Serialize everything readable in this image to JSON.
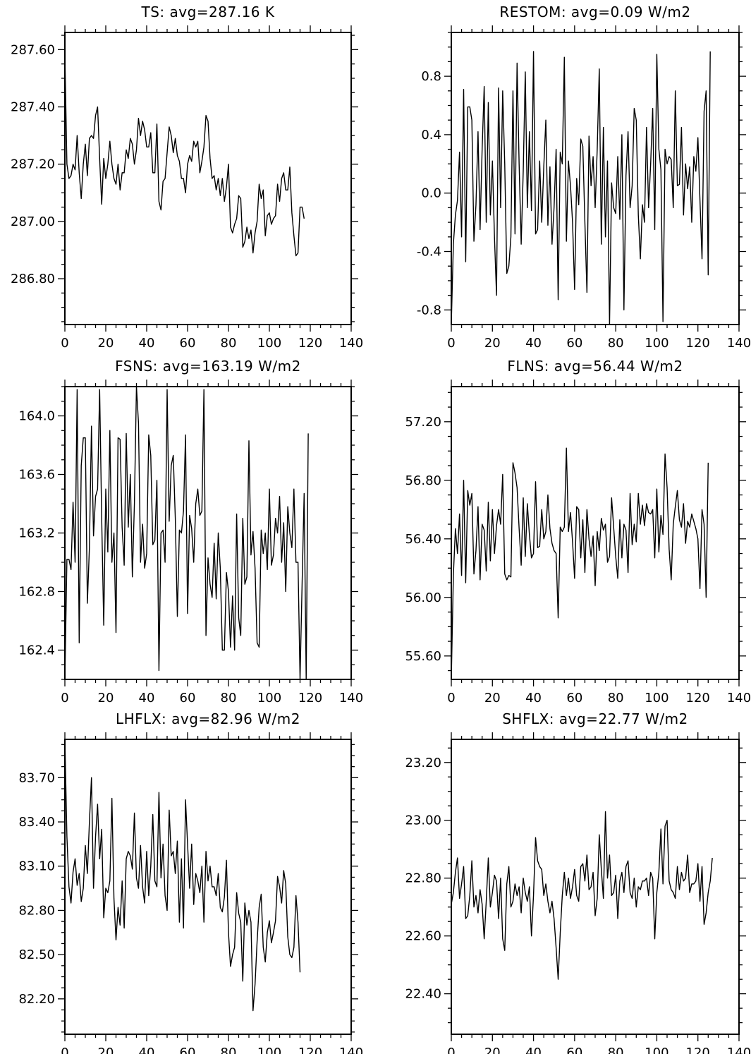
{
  "colors": {
    "line": "#000000",
    "background": "#ffffff",
    "frame": "#000000"
  },
  "chart_data": [
    {
      "type": "line",
      "title": "TS: avg=287.16 K",
      "xlabel": "",
      "ylabel": "",
      "xlim": [
        0,
        140
      ],
      "ylim": [
        286.64,
        287.66
      ],
      "xticks": [
        0,
        20,
        40,
        60,
        80,
        100,
        120,
        140
      ],
      "xtick_labels": [
        "0",
        "20",
        "40",
        "60",
        "80",
        "100",
        "120",
        "140"
      ],
      "yticks": [
        286.8,
        287.0,
        287.2,
        287.4,
        287.6
      ],
      "ytick_labels": [
        "286.80",
        "287.00",
        "287.20",
        "287.40",
        "287.60"
      ],
      "grid": false,
      "series": [
        {
          "values": [
            287.58,
            287.2,
            287.15,
            287.16,
            287.2,
            287.18,
            287.3,
            287.17,
            287.08,
            287.2,
            287.27,
            287.16,
            287.29,
            287.3,
            287.29,
            287.37,
            287.4,
            287.22,
            287.06,
            287.22,
            287.15,
            287.2,
            287.28,
            287.2,
            287.15,
            287.13,
            287.2,
            287.11,
            287.17,
            287.17,
            287.25,
            287.22,
            287.29,
            287.27,
            287.2,
            287.25,
            287.36,
            287.3,
            287.35,
            287.32,
            287.26,
            287.26,
            287.31,
            287.17,
            287.17,
            287.34,
            287.07,
            287.04,
            287.14,
            287.15,
            287.24,
            287.33,
            287.3,
            287.24,
            287.29,
            287.23,
            287.21,
            287.15,
            287.15,
            287.1,
            287.2,
            287.23,
            287.21,
            287.28,
            287.26,
            287.28,
            287.17,
            287.21,
            287.26,
            287.37,
            287.35,
            287.22,
            287.15,
            287.16,
            287.11,
            287.15,
            287.09,
            287.15,
            287.07,
            287.12,
            287.2,
            286.98,
            286.96,
            286.99,
            287.01,
            287.09,
            287.08,
            286.91,
            286.93,
            286.98,
            286.94,
            286.97,
            286.89,
            286.96,
            287.0,
            287.13,
            287.08,
            287.11,
            286.95,
            287.02,
            287.03,
            286.99,
            287.01,
            287.02,
            287.13,
            287.07,
            287.15,
            287.17,
            287.11,
            287.11,
            287.19,
            287.03,
            286.95,
            286.88,
            286.89,
            287.05,
            287.05,
            287.01
          ]
        }
      ]
    },
    {
      "type": "line",
      "title": "RESTOM: avg=0.09 W/m2",
      "xlabel": "",
      "ylabel": "",
      "xlim": [
        0,
        140
      ],
      "ylim": [
        -0.9,
        1.1
      ],
      "xticks": [
        0,
        20,
        40,
        60,
        80,
        100,
        120,
        140
      ],
      "xtick_labels": [
        "0",
        "20",
        "40",
        "60",
        "80",
        "100",
        "120",
        "140"
      ],
      "yticks": [
        -0.8,
        -0.4,
        0.0,
        0.4,
        0.8
      ],
      "ytick_labels": [
        "-0.8",
        "-0.4",
        "0.0",
        "0.4",
        "0.8"
      ],
      "grid": false,
      "series": [
        {
          "values": [
            -0.9,
            -0.35,
            -0.15,
            -0.05,
            0.28,
            -0.3,
            0.71,
            -0.47,
            0.59,
            0.59,
            0.5,
            -0.33,
            -0.08,
            0.42,
            -0.25,
            0.3,
            0.73,
            -0.2,
            0.62,
            -0.15,
            0.22,
            -0.3,
            -0.7,
            0.72,
            -0.1,
            0.7,
            0.2,
            -0.55,
            -0.5,
            -0.3,
            0.7,
            -0.28,
            0.89,
            0.2,
            -0.35,
            0.15,
            0.83,
            -0.1,
            0.42,
            -0.12,
            0.97,
            -0.28,
            -0.25,
            0.22,
            -0.2,
            0.18,
            0.5,
            -0.22,
            0.18,
            -0.35,
            -0.1,
            0.3,
            -0.73,
            0.28,
            0.2,
            0.93,
            -0.33,
            0.22,
            0.05,
            -0.2,
            -0.66,
            0.1,
            -0.08,
            0.37,
            0.32,
            -0.2,
            -0.68,
            0.39,
            0.05,
            0.25,
            -0.1,
            0.3,
            0.85,
            -0.35,
            0.45,
            -0.3,
            0.22,
            -0.9,
            0.07,
            -0.1,
            -0.14,
            0.25,
            -0.18,
            0.4,
            -0.8,
            0.12,
            0.42,
            -0.1,
            0.05,
            0.58,
            0.5,
            -0.15,
            -0.45,
            -0.08,
            -0.2,
            0.45,
            -0.1,
            0.2,
            0.58,
            -0.25,
            0.95,
            0.3,
            0.16,
            -0.88,
            0.3,
            0.2,
            0.25,
            0.23,
            -0.1,
            0.7,
            0.05,
            0.06,
            0.45,
            -0.15,
            0.2,
            0.03,
            0.18,
            -0.2,
            0.25,
            0.15,
            0.38,
            -0.05,
            -0.45,
            0.56,
            0.7,
            -0.56,
            0.97
          ]
        }
      ]
    },
    {
      "type": "line",
      "title": "FSNS: avg=163.19 W/m2",
      "xlabel": "",
      "ylabel": "",
      "xlim": [
        0,
        140
      ],
      "ylim": [
        162.2,
        164.2
      ],
      "xticks": [
        0,
        20,
        40,
        60,
        80,
        100,
        120,
        140
      ],
      "xtick_labels": [
        "0",
        "20",
        "40",
        "60",
        "80",
        "100",
        "120",
        "140"
      ],
      "yticks": [
        162.4,
        162.8,
        163.2,
        163.6,
        164.0
      ],
      "ytick_labels": [
        "162.4",
        "162.8",
        "163.2",
        "163.6",
        "164.0"
      ],
      "grid": false,
      "series": [
        {
          "values": [
            162.2,
            163.02,
            163.02,
            162.95,
            163.41,
            163.0,
            164.18,
            162.45,
            163.66,
            163.85,
            163.85,
            162.72,
            163.1,
            163.93,
            163.18,
            163.45,
            163.5,
            164.18,
            163.3,
            162.57,
            163.5,
            163.07,
            163.9,
            163.0,
            163.2,
            162.52,
            163.85,
            163.84,
            163.24,
            162.98,
            163.88,
            163.24,
            163.6,
            162.9,
            163.4,
            164.2,
            163.95,
            163.0,
            163.26,
            162.96,
            163.06,
            163.87,
            163.73,
            163.12,
            163.15,
            163.56,
            162.26,
            163.2,
            163.22,
            163.0,
            164.18,
            163.28,
            163.66,
            163.73,
            163.3,
            162.63,
            163.22,
            163.2,
            163.35,
            163.87,
            162.65,
            163.32,
            163.23,
            163.0,
            163.4,
            163.5,
            163.32,
            163.35,
            164.18,
            162.5,
            163.03,
            162.85,
            162.76,
            163.13,
            162.75,
            163.2,
            162.96,
            162.4,
            162.4,
            162.93,
            162.8,
            162.42,
            162.77,
            162.4,
            163.33,
            162.62,
            162.5,
            163.3,
            162.85,
            162.9,
            163.83,
            163.05,
            163.21,
            162.96,
            162.45,
            162.42,
            163.22,
            163.06,
            163.2,
            162.95,
            163.5,
            162.98,
            163.05,
            163.3,
            163.2,
            163.45,
            163.0,
            163.27,
            162.8,
            163.38,
            163.2,
            163.1,
            163.5,
            163.0,
            163.0,
            162.2,
            162.85,
            163.47,
            162.2,
            163.88
          ]
        }
      ]
    },
    {
      "type": "line",
      "title": "FLNS: avg=56.44 W/m2",
      "xlabel": "",
      "ylabel": "",
      "xlim": [
        0,
        140
      ],
      "ylim": [
        55.44,
        57.44
      ],
      "xticks": [
        0,
        20,
        40,
        60,
        80,
        100,
        120,
        140
      ],
      "xtick_labels": [
        "0",
        "20",
        "40",
        "60",
        "80",
        "100",
        "120",
        "140"
      ],
      "yticks": [
        55.6,
        56.0,
        56.4,
        56.8,
        57.2
      ],
      "ytick_labels": [
        "55.60",
        "56.00",
        "56.40",
        "56.80",
        "57.20"
      ],
      "grid": false,
      "series": [
        {
          "values": [
            55.44,
            56.15,
            56.47,
            56.3,
            56.57,
            56.15,
            56.8,
            56.1,
            56.73,
            56.63,
            56.71,
            56.16,
            56.32,
            56.62,
            56.12,
            56.5,
            56.46,
            56.18,
            56.65,
            56.25,
            56.6,
            56.3,
            56.49,
            56.6,
            56.5,
            56.84,
            56.16,
            56.12,
            56.15,
            56.14,
            56.92,
            56.85,
            56.75,
            56.47,
            56.22,
            56.68,
            56.28,
            56.64,
            56.43,
            56.27,
            56.3,
            56.79,
            56.34,
            56.35,
            56.6,
            56.4,
            56.45,
            56.7,
            56.47,
            56.37,
            56.32,
            56.3,
            55.86,
            56.48,
            56.45,
            56.48,
            57.02,
            56.45,
            56.58,
            56.38,
            56.13,
            56.62,
            56.6,
            56.27,
            56.53,
            56.17,
            56.6,
            56.4,
            56.28,
            56.42,
            56.08,
            56.45,
            56.32,
            56.54,
            56.46,
            56.5,
            56.24,
            56.28,
            56.68,
            56.48,
            56.28,
            56.13,
            56.53,
            56.27,
            56.5,
            56.46,
            56.17,
            56.71,
            56.36,
            56.5,
            56.38,
            56.71,
            56.5,
            56.63,
            56.49,
            56.64,
            56.58,
            56.57,
            56.6,
            56.27,
            56.74,
            56.31,
            56.56,
            56.43,
            56.98,
            56.75,
            56.33,
            56.12,
            56.5,
            56.62,
            56.73,
            56.53,
            56.48,
            56.64,
            56.37,
            56.52,
            56.48,
            56.57,
            56.52,
            56.47,
            56.4,
            56.06,
            56.6,
            56.5,
            56.0,
            56.92
          ]
        }
      ]
    },
    {
      "type": "line",
      "title": "LHFLX: avg=82.96 W/m2",
      "xlabel": "",
      "ylabel": "",
      "xlim": [
        0,
        140
      ],
      "ylim": [
        81.96,
        83.96
      ],
      "xticks": [
        0,
        20,
        40,
        60,
        80,
        100,
        120,
        140
      ],
      "xtick_labels": [
        "0",
        "20",
        "40",
        "60",
        "80",
        "100",
        "120",
        "140"
      ],
      "yticks": [
        82.2,
        82.5,
        82.8,
        83.1,
        83.4,
        83.7
      ],
      "ytick_labels": [
        "82.20",
        "82.50",
        "82.80",
        "83.10",
        "83.40",
        "83.70"
      ],
      "grid": false,
      "series": [
        {
          "values": [
            83.96,
            83.3,
            82.96,
            82.85,
            83.06,
            83.15,
            82.97,
            83.05,
            82.86,
            82.95,
            83.24,
            83.05,
            83.4,
            83.7,
            82.95,
            83.3,
            83.52,
            83.15,
            83.35,
            82.75,
            82.95,
            82.92,
            83.0,
            83.56,
            82.88,
            82.6,
            82.82,
            82.7,
            83.0,
            82.68,
            83.15,
            83.2,
            83.17,
            83.08,
            83.46,
            83.02,
            82.95,
            83.24,
            82.96,
            82.85,
            83.2,
            82.9,
            83.1,
            83.45,
            83.0,
            82.96,
            83.6,
            83.02,
            83.25,
            82.9,
            82.8,
            83.48,
            83.17,
            83.2,
            83.05,
            83.27,
            82.72,
            83.15,
            82.68,
            83.55,
            83.25,
            82.95,
            83.25,
            82.84,
            83.05,
            83.0,
            82.92,
            83.1,
            82.72,
            83.2,
            83.0,
            83.1,
            82.96,
            82.96,
            82.9,
            83.05,
            82.82,
            82.79,
            82.89,
            83.14,
            82.65,
            82.42,
            82.5,
            82.55,
            82.92,
            82.78,
            82.72,
            82.32,
            82.85,
            82.7,
            82.8,
            82.72,
            82.12,
            82.3,
            82.59,
            82.82,
            82.91,
            82.55,
            82.45,
            82.65,
            82.73,
            82.58,
            82.65,
            82.73,
            83.03,
            82.96,
            82.85,
            83.07,
            82.98,
            82.62,
            82.5,
            82.48,
            82.55,
            82.9,
            82.72,
            82.38
          ]
        }
      ]
    },
    {
      "type": "line",
      "title": "SHFLX: avg=22.77 W/m2",
      "xlabel": "",
      "ylabel": "",
      "xlim": [
        0,
        140
      ],
      "ylim": [
        22.26,
        23.28
      ],
      "xticks": [
        0,
        20,
        40,
        60,
        80,
        100,
        120,
        140
      ],
      "xtick_labels": [
        "0",
        "20",
        "40",
        "60",
        "80",
        "100",
        "120",
        "140"
      ],
      "yticks": [
        22.4,
        22.6,
        22.8,
        23.0,
        23.2
      ],
      "ytick_labels": [
        "22.40",
        "22.60",
        "22.80",
        "23.00",
        "23.20"
      ],
      "grid": false,
      "series": [
        {
          "values": [
            22.71,
            22.75,
            22.82,
            22.87,
            22.73,
            22.78,
            22.84,
            22.66,
            22.67,
            22.74,
            22.86,
            22.7,
            22.74,
            22.68,
            22.76,
            22.71,
            22.59,
            22.72,
            22.87,
            22.7,
            22.75,
            22.81,
            22.79,
            22.66,
            22.8,
            22.59,
            22.55,
            22.78,
            22.84,
            22.7,
            22.72,
            22.78,
            22.74,
            22.77,
            22.68,
            22.8,
            22.75,
            22.72,
            22.77,
            22.6,
            22.74,
            22.94,
            22.86,
            22.84,
            22.83,
            22.74,
            22.78,
            22.72,
            22.68,
            22.72,
            22.66,
            22.56,
            22.45,
            22.61,
            22.74,
            22.82,
            22.74,
            22.8,
            22.73,
            22.77,
            22.83,
            22.74,
            22.72,
            22.84,
            22.85,
            22.79,
            22.88,
            22.76,
            22.77,
            22.82,
            22.67,
            22.73,
            22.95,
            22.83,
            22.73,
            23.03,
            22.8,
            22.88,
            22.74,
            22.75,
            22.81,
            22.66,
            22.79,
            22.82,
            22.75,
            22.84,
            22.86,
            22.75,
            22.73,
            22.8,
            22.7,
            22.77,
            22.76,
            22.79,
            22.79,
            22.8,
            22.74,
            22.82,
            22.8,
            22.59,
            22.75,
            22.82,
            22.97,
            22.78,
            22.98,
            23.0,
            22.79,
            22.76,
            22.75,
            22.73,
            22.84,
            22.76,
            22.82,
            22.79,
            22.8,
            22.88,
            22.75,
            22.78,
            22.78,
            22.79,
            22.85,
            22.72,
            22.84,
            22.64,
            22.68,
            22.75,
            22.79,
            22.87
          ]
        }
      ]
    }
  ]
}
